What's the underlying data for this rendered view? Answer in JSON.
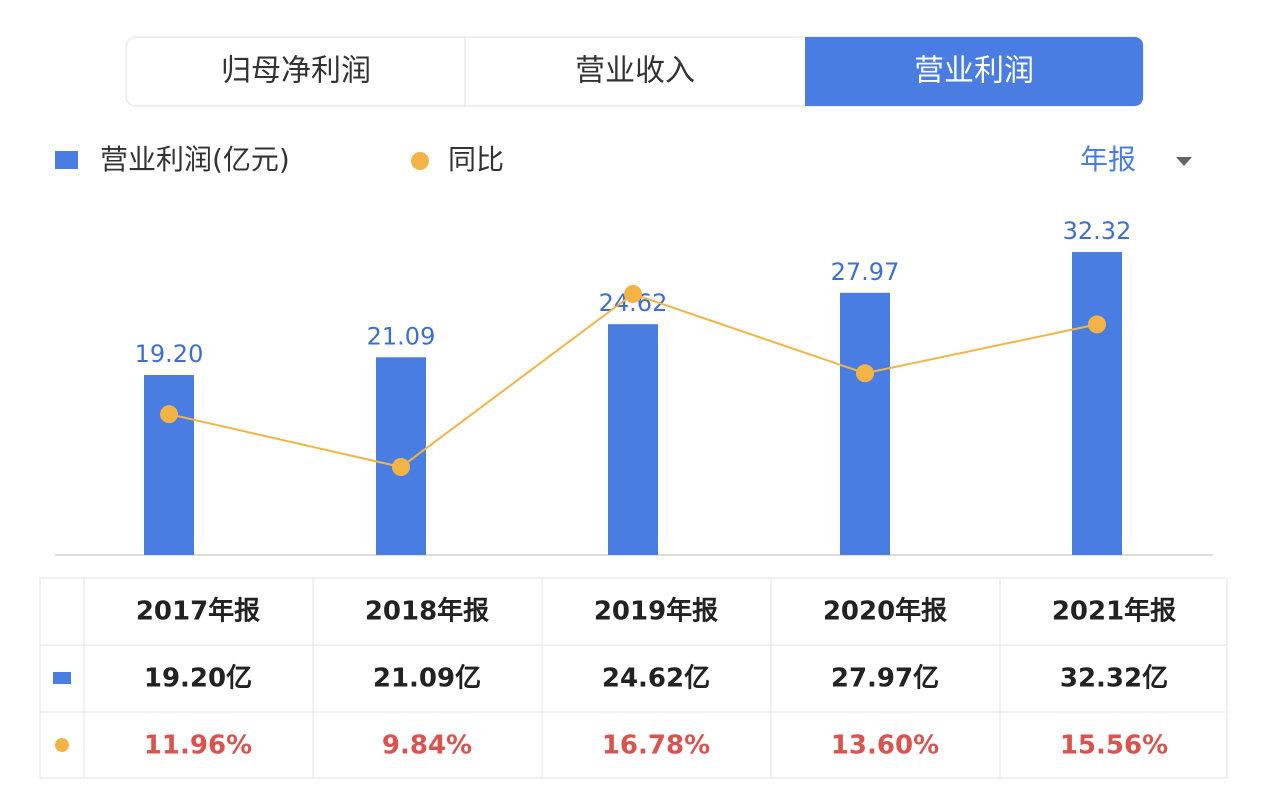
{
  "tabs": [
    "归母净利润",
    "营业收入",
    "营业利润"
  ],
  "period": "年报",
  "chart_data": {
    "type": "bar",
    "categories": [
      "2017年报",
      "2018年报",
      "2019年报",
      "2020年报",
      "2021年报"
    ],
    "series": [
      {
        "name": "营业利润(亿元)",
        "type": "bar",
        "color": "#4a7de2",
        "values": [
          19.2,
          21.09,
          24.62,
          27.97,
          32.32
        ],
        "value_labels": [
          "19.20",
          "21.09",
          "24.62",
          "27.97",
          "32.32"
        ]
      },
      {
        "name": "同比",
        "type": "line",
        "axis": "y2",
        "color": "#f2b447",
        "values": [
          11.96,
          9.84,
          16.78,
          13.6,
          15.56
        ]
      }
    ]
  },
  "table": {
    "header": [
      "2017年报",
      "2018年报",
      "2019年报",
      "2020年报",
      "2021年报"
    ],
    "rows": [
      [
        "19.20亿",
        "21.09亿",
        "24.62亿",
        "27.97亿",
        "32.32亿"
      ],
      [
        "11.96%",
        "9.84%",
        "16.78%",
        "13.60%",
        "15.56%"
      ]
    ]
  }
}
